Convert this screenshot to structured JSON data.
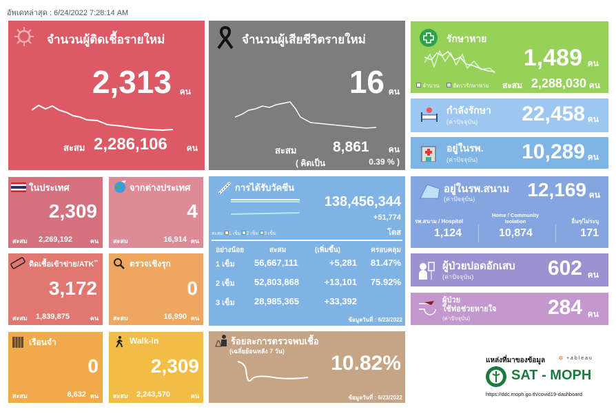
{
  "header": {
    "updated": "อัพเดทล่าสุด : 6/24/2022 7:28:14 AM"
  },
  "unit": "คน",
  "cum_label": "สะสม",
  "current_note": "(ค่าปัจจุบัน)",
  "new_cases": {
    "title": "จำนวนผู้ติดเชื้อรายใหม่",
    "value": "2,313",
    "cum": "2,286,106",
    "icon": "virus-icon",
    "color": "#db5a66"
  },
  "new_deaths": {
    "title": "จำนวนผู้เสียชีวิตรายใหม่",
    "value": "16",
    "cum": "8,861",
    "pct_label": "( คิดเป็น",
    "pct": "0.39 % )",
    "icon": "black-ribbon-icon",
    "color": "#7d7d7d"
  },
  "recovered": {
    "title": "รักษาหาย",
    "value": "1,489",
    "cum": "2,288,030",
    "legend": [
      "จำนวน",
      "อัตรารักษาหาย"
    ],
    "icon": "plus-icon",
    "color": "#98d15a"
  },
  "treating": {
    "title": "กำลังรักษา",
    "value": "22,458",
    "icon": "hospital-bed-icon",
    "color": "#9dc6f0"
  },
  "in_hospital": {
    "title": "อยู่ในรพ.",
    "value": "10,289",
    "icon": "hospital-icon",
    "color": "#7fb4e6"
  },
  "field_hospital": {
    "title": "อยู่ในรพ.สนาม",
    "value": "12,169",
    "icon": "tent-icon",
    "color": "#85a5e1",
    "breakdown": [
      {
        "label": "รพ.สนาม / Hospitel",
        "value": "1,124"
      },
      {
        "label": "Home / Community Isolation",
        "value": "10,874"
      },
      {
        "label": "อื่นๆ/ไม่ระบุ",
        "value": "171"
      }
    ]
  },
  "pneumonia": {
    "title": "ผู้ป่วยปอดอักเสบ",
    "value": "602",
    "icon": "patient-iv-icon",
    "color": "#9c92d0"
  },
  "ventilator": {
    "title1": "ผู้ป่วย",
    "title2": "ใช้ท่อช่วยหายใจ",
    "value": "284",
    "icon": "ventilator-icon",
    "color": "#c398ce"
  },
  "domestic": {
    "title": "ในประเทศ",
    "value": "2,309",
    "cum": "2,269,192",
    "icon": "thai-flag-icon",
    "color": "#d5717f"
  },
  "imported": {
    "title": "จากต่างประเทศ",
    "value": "4",
    "cum": "16,914",
    "icon": "globe-plane-icon",
    "color": "#de8b97"
  },
  "atk": {
    "title": "ติดเชื้อเข้าข่าย/ATK",
    "mark": "**",
    "value": "3,172",
    "cum": "1,839,875",
    "icon": "atk-test-icon",
    "color": "#e07771"
  },
  "active_search": {
    "title": "ตรวจเชิงรุก",
    "value": "0",
    "cum": "16,990",
    "icon": "search-icon",
    "color": "#efa65f"
  },
  "prison": {
    "title": "เรือนจำ",
    "value": "0",
    "cum": "8,632",
    "icon": "prison-icon",
    "color": "#f0aa4a"
  },
  "walkin": {
    "title": "Walk-in",
    "value": "2,309",
    "cum": "2,243,570",
    "icon": "walking-icon",
    "color": "#f1bd45"
  },
  "vaccine": {
    "title": "การได้รับวัคซีน",
    "total": "138,456,344",
    "added": "+51,774",
    "dose_unit": "โดส",
    "legend_prefix": "สะสม",
    "legend": [
      "1 เข็ม",
      "2 เข็ม",
      "3 เข็ม"
    ],
    "headers": [
      "อย่างน้อย",
      "สะสม",
      "(เพิ่มขึ้น)",
      "ครอบคลุม"
    ],
    "rows": [
      [
        "1 เข็ม",
        "56,667,111",
        "+5,281",
        "81.47%"
      ],
      [
        "2 เข็ม",
        "52,803,868",
        "+13,101",
        "75.92%"
      ],
      [
        "3 เข็ม",
        "28,985,365",
        "+33,392",
        ""
      ]
    ],
    "date": "ข้อมูลวันที่ : 6/23/2022",
    "icon": "syringe-icon",
    "color": "#7fb3e6"
  },
  "positivity": {
    "title": "ร้อยละการตรวจพบเชื้อ",
    "subtitle": "(เฉลี่ยย้อนหลัง 7 วัน)",
    "value": "10.82%",
    "date": "ข้อมูลวันที่ : 6/23/2022",
    "icon": "lab-scientist-icon",
    "color": "#c6a486"
  },
  "source": {
    "label": "แหล่งที่มาของข้อมูล",
    "tableau": "+ a b l e a u",
    "org": "SAT - MOPH",
    "url": "https://ddc.moph.go.th/covid19-dashboard",
    "org_color": "#1c7a3c"
  }
}
